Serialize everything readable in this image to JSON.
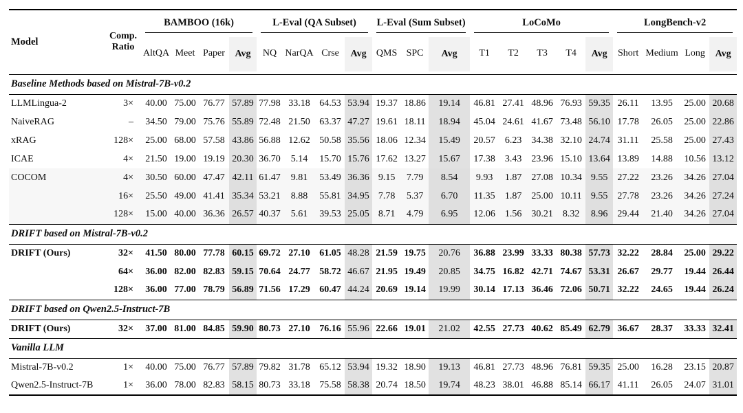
{
  "paper_table": {
    "header": {
      "model_label": "Model",
      "comp_ratio_line1": "Comp.",
      "comp_ratio_line2": "Ratio",
      "groups": [
        {
          "label": "BAMBOO (16k)",
          "cols": [
            "AltQA",
            "Meet",
            "Paper",
            "Avg"
          ]
        },
        {
          "label": "L-Eval (QA Subset)",
          "cols": [
            "NQ",
            "NarQA",
            "Crse",
            "Avg"
          ]
        },
        {
          "label": "L-Eval (Sum Subset)",
          "cols": [
            "QMS",
            "SPC",
            "Avg"
          ]
        },
        {
          "label": "LoCoMo",
          "cols": [
            "T1",
            "T2",
            "T3",
            "T4",
            "Avg"
          ]
        },
        {
          "label": "LongBench-v2",
          "cols": [
            "Short",
            "Medium",
            "Long",
            "Avg"
          ]
        }
      ]
    },
    "colors": {
      "avg_column_bg": "#e1e1e1",
      "avg_header_bg": "#f2f2f2",
      "shaded_band_bg": "#f7f7f7"
    },
    "sections": [
      {
        "title": "Baseline Methods based on Mistral-7B-v0.2",
        "rows": [
          {
            "model": "LLMLingua-2",
            "ratio": "3×",
            "bold": false,
            "shaded": false,
            "normal_indices": [],
            "values": [
              "40.00",
              "75.00",
              "76.77",
              "57.89",
              "77.98",
              "33.18",
              "64.53",
              "53.94",
              "19.37",
              "18.86",
              "19.14",
              "46.81",
              "27.41",
              "48.96",
              "76.93",
              "59.35",
              "26.11",
              "13.95",
              "25.00",
              "20.68"
            ]
          },
          {
            "model": "NaiveRAG",
            "ratio": "–",
            "bold": false,
            "shaded": false,
            "normal_indices": [],
            "values": [
              "34.50",
              "79.00",
              "75.76",
              "55.89",
              "72.48",
              "21.50",
              "63.37",
              "47.27",
              "19.61",
              "18.11",
              "18.94",
              "45.04",
              "24.61",
              "41.67",
              "73.48",
              "56.10",
              "17.78",
              "26.05",
              "25.00",
              "22.86"
            ]
          },
          {
            "model": "xRAG",
            "ratio": "128×",
            "bold": false,
            "shaded": false,
            "normal_indices": [],
            "values": [
              "25.00",
              "68.00",
              "57.58",
              "43.86",
              "56.88",
              "12.62",
              "50.58",
              "35.56",
              "18.06",
              "12.34",
              "15.49",
              "20.57",
              "6.23",
              "34.38",
              "32.10",
              "24.74",
              "31.11",
              "25.58",
              "25.00",
              "27.43"
            ]
          },
          {
            "model": "ICAE",
            "ratio": "4×",
            "bold": false,
            "shaded": false,
            "normal_indices": [],
            "values": [
              "21.50",
              "19.00",
              "19.19",
              "20.30",
              "36.70",
              "5.14",
              "15.70",
              "15.76",
              "17.62",
              "13.27",
              "15.67",
              "17.38",
              "3.43",
              "23.96",
              "15.10",
              "13.64",
              "13.89",
              "14.88",
              "10.56",
              "13.12"
            ]
          },
          {
            "model": "COCOM",
            "ratio": "4×",
            "bold": false,
            "shaded": true,
            "normal_indices": [],
            "values": [
              "30.50",
              "60.00",
              "47.47",
              "42.11",
              "61.47",
              "9.81",
              "53.49",
              "36.36",
              "9.15",
              "7.79",
              "8.54",
              "9.93",
              "1.87",
              "27.08",
              "10.34",
              "9.55",
              "27.22",
              "23.26",
              "34.26",
              "27.04"
            ]
          },
          {
            "model": "",
            "ratio": "16×",
            "bold": false,
            "shaded": true,
            "normal_indices": [],
            "values": [
              "25.50",
              "49.00",
              "41.41",
              "35.34",
              "53.21",
              "8.88",
              "55.81",
              "34.95",
              "7.78",
              "5.37",
              "6.70",
              "11.35",
              "1.87",
              "25.00",
              "10.11",
              "9.55",
              "27.78",
              "23.26",
              "34.26",
              "27.24"
            ]
          },
          {
            "model": "",
            "ratio": "128×",
            "bold": false,
            "shaded": true,
            "normal_indices": [],
            "values": [
              "15.00",
              "40.00",
              "36.36",
              "26.57",
              "40.37",
              "5.61",
              "39.53",
              "25.05",
              "8.71",
              "4.79",
              "6.95",
              "12.06",
              "1.56",
              "30.21",
              "8.32",
              "8.96",
              "29.44",
              "21.40",
              "34.26",
              "27.04"
            ]
          }
        ]
      },
      {
        "title": "DRIFT based on Mistral-7B-v0.2",
        "rows": [
          {
            "model": "DRIFT (Ours)",
            "ratio": "32×",
            "bold": true,
            "shaded": false,
            "normal_indices": [
              7,
              10
            ],
            "values": [
              "41.50",
              "80.00",
              "77.78",
              "60.15",
              "69.72",
              "27.10",
              "61.05",
              "48.28",
              "21.59",
              "19.75",
              "20.76",
              "36.88",
              "23.99",
              "33.33",
              "80.38",
              "57.73",
              "32.22",
              "28.84",
              "25.00",
              "29.22"
            ]
          },
          {
            "model": "",
            "ratio": "64×",
            "bold": true,
            "shaded": false,
            "normal_indices": [
              7,
              10
            ],
            "values": [
              "36.00",
              "82.00",
              "82.83",
              "59.15",
              "70.64",
              "24.77",
              "58.72",
              "46.67",
              "21.95",
              "19.49",
              "20.85",
              "34.75",
              "16.82",
              "42.71",
              "74.67",
              "53.31",
              "26.67",
              "29.77",
              "19.44",
              "26.44"
            ]
          },
          {
            "model": "",
            "ratio": "128×",
            "bold": true,
            "shaded": false,
            "normal_indices": [
              7,
              10
            ],
            "values": [
              "36.00",
              "77.00",
              "78.79",
              "56.89",
              "71.56",
              "17.29",
              "60.47",
              "44.24",
              "20.69",
              "19.14",
              "19.99",
              "30.14",
              "17.13",
              "36.46",
              "72.06",
              "50.71",
              "32.22",
              "24.65",
              "19.44",
              "26.24"
            ]
          }
        ]
      },
      {
        "title": "DRIFT based on Qwen2.5-Instruct-7B",
        "rows": [
          {
            "model": "DRIFT (Ours)",
            "ratio": "32×",
            "bold": true,
            "shaded": false,
            "normal_indices": [
              7,
              10
            ],
            "values": [
              "37.00",
              "81.00",
              "84.85",
              "59.90",
              "80.73",
              "27.10",
              "76.16",
              "55.96",
              "22.66",
              "19.01",
              "21.02",
              "42.55",
              "27.73",
              "40.62",
              "85.49",
              "62.79",
              "36.67",
              "28.37",
              "33.33",
              "32.41"
            ]
          }
        ]
      },
      {
        "title": "Vanilla LLM",
        "rows": [
          {
            "model": "Mistral-7B-v0.2",
            "ratio": "1×",
            "bold": false,
            "shaded": false,
            "normal_indices": [],
            "values": [
              "40.00",
              "75.00",
              "76.77",
              "57.89",
              "79.82",
              "31.78",
              "65.12",
              "53.94",
              "19.32",
              "18.90",
              "19.13",
              "46.81",
              "27.73",
              "48.96",
              "76.81",
              "59.35",
              "25.00",
              "16.28",
              "23.15",
              "20.87"
            ]
          },
          {
            "model": "Qwen2.5-Instruct-7B",
            "ratio": "1×",
            "bold": false,
            "shaded": false,
            "normal_indices": [],
            "values": [
              "36.00",
              "78.00",
              "82.83",
              "58.15",
              "80.73",
              "33.18",
              "75.58",
              "58.38",
              "20.74",
              "18.50",
              "19.74",
              "48.23",
              "38.01",
              "46.88",
              "85.14",
              "66.17",
              "41.11",
              "26.05",
              "24.07",
              "31.01"
            ]
          }
        ]
      }
    ]
  }
}
